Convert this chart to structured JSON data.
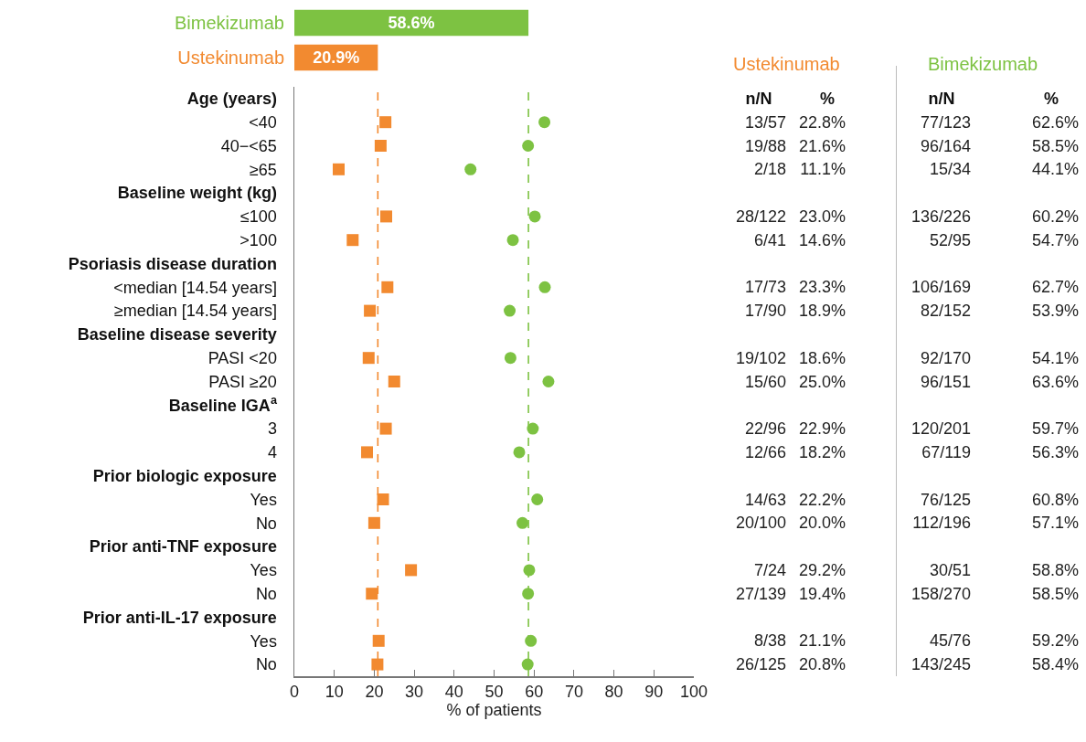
{
  "chart_data": [
    {
      "type": "bar",
      "orientation": "horizontal",
      "categories": [
        "Bimekizumab",
        "Ustekinumab"
      ],
      "values": [
        58.6,
        20.9
      ],
      "colors": [
        "#7dc242",
        "#f28a30"
      ],
      "value_labels": [
        "58.6%",
        "20.9%"
      ],
      "xlim": [
        0,
        100
      ],
      "tick_labels": "y"
    },
    {
      "type": "scatter",
      "orientation": "horizontal",
      "categories": [
        "Age (years)",
        "<40",
        "40−<65",
        "≥65",
        "Baseline weight (kg)",
        "≤100",
        ">100",
        "Psoriasis disease duration",
        "<median [14.54 years]",
        "≥median [14.54 years]",
        "Baseline disease severity",
        "PASI <20",
        "PASI ≥20",
        "Baseline IGA$^{a}$",
        "3",
        "4",
        "Prior biologic exposure",
        "Yes",
        "No",
        "Prior anti-TNF exposure",
        "Yes",
        "No",
        "Prior anti-IL-17 exposure",
        "Yes",
        "No"
      ],
      "series": [
        {
          "name": "Ustekinumab",
          "color": "#f28a30",
          "marker": "square",
          "values": [
            null,
            22.8,
            21.6,
            11.1,
            null,
            23.0,
            14.6,
            null,
            23.3,
            18.9,
            null,
            18.6,
            25.0,
            null,
            22.9,
            18.2,
            null,
            22.2,
            20.0,
            null,
            29.2,
            19.4,
            null,
            21.1,
            20.8
          ]
        },
        {
          "name": "Bimekizumab",
          "color": "#7dc242",
          "marker": "circle",
          "values": [
            null,
            62.6,
            58.5,
            44.1,
            null,
            60.2,
            54.7,
            null,
            62.7,
            53.9,
            null,
            54.1,
            63.6,
            null,
            59.7,
            56.3,
            null,
            60.8,
            57.1,
            null,
            58.8,
            58.5,
            null,
            59.2,
            58.4
          ]
        }
      ],
      "xlabel": "% of patients",
      "xlim": [
        0,
        100
      ],
      "xticks": [
        0,
        10,
        20,
        30,
        40,
        50,
        60,
        70,
        80,
        90,
        100
      ],
      "grid": false,
      "legend": false,
      "ref_lines": [
        {
          "axis": "x",
          "value": 20.9,
          "color": "#f28a30",
          "line_style": "dashed"
        },
        {
          "axis": "x",
          "value": 58.6,
          "color": "#7dc242",
          "line_style": "dashed"
        }
      ]
    },
    {
      "type": "other",
      "categories": [
        "n/N",
        "%",
        "n/N",
        "%"
      ],
      "cell_labels": [
        [
          null,
          null,
          null,
          null
        ],
        [
          "13/57",
          "22.8%",
          "77/123",
          "62.6%"
        ],
        [
          "19/88",
          "21.6%",
          "96/164",
          "58.5%"
        ],
        [
          "2/18",
          "11.1%",
          "15/34",
          "44.1%"
        ],
        [
          null,
          null,
          null,
          null
        ],
        [
          "28/122",
          "23.0%",
          "136/226",
          "60.2%"
        ],
        [
          "6/41",
          "14.6%",
          "52/95",
          "54.7%"
        ],
        [
          null,
          null,
          null,
          null
        ],
        [
          "17/73",
          "23.3%",
          "106/169",
          "62.7%"
        ],
        [
          "17/90",
          "18.9%",
          "82/152",
          "53.9%"
        ],
        [
          null,
          null,
          null,
          null
        ],
        [
          "19/102",
          "18.6%",
          "92/170",
          "54.1%"
        ],
        [
          "15/60",
          "25.0%",
          "96/151",
          "63.6%"
        ],
        [
          null,
          null,
          null,
          null
        ],
        [
          "22/96",
          "22.9%",
          "120/201",
          "59.7%"
        ],
        [
          "12/66",
          "18.2%",
          "67/119",
          "56.3%"
        ],
        [
          null,
          null,
          null,
          null
        ],
        [
          "14/63",
          "22.2%",
          "76/125",
          "60.8%"
        ],
        [
          "20/100",
          "20.0%",
          "112/196",
          "57.1%"
        ],
        [
          null,
          null,
          null,
          null
        ],
        [
          "7/24",
          "29.2%",
          "30/51",
          "58.8%"
        ],
        [
          "27/139",
          "19.4%",
          "158/270",
          "58.5%"
        ],
        [
          null,
          null,
          null,
          null
        ],
        [
          "8/38",
          "21.1%",
          "45/76",
          "59.2%"
        ],
        [
          "26/125",
          "20.8%",
          "143/245",
          "58.4%"
        ]
      ]
    }
  ]
}
